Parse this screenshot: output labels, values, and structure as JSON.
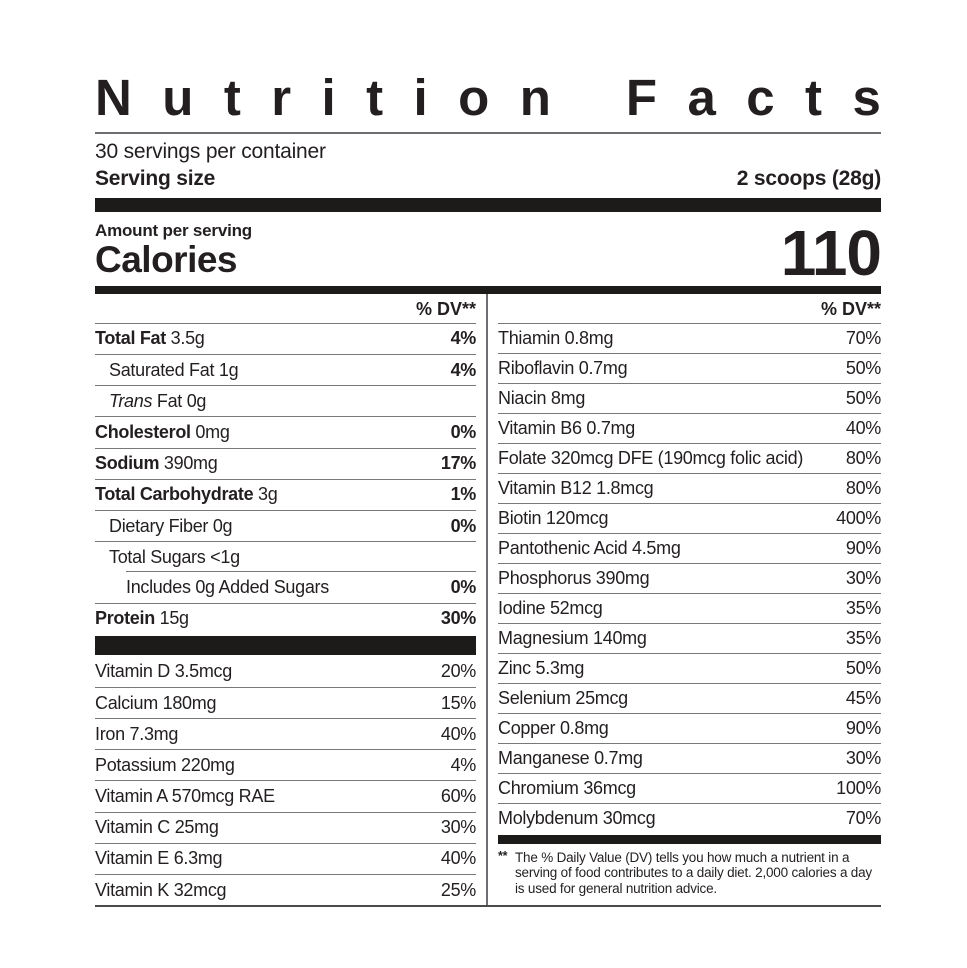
{
  "label": {
    "title": "Nutrition Facts",
    "servings_per_container": "30 servings per container",
    "serving_size_label": "Serving size",
    "serving_size_value": "2 scoops (28g)",
    "amount_per_serving_label": "Amount per serving",
    "calories_label": "Calories",
    "calories_value": "110",
    "dv_header": "% DV**",
    "footnote_marker": "**",
    "footnote_text": "The % Daily Value (DV) tells you how much a nutrient in a serving of food contributes to a daily diet. 2,000 calories a day is used for general nutrition advice."
  },
  "left_column": {
    "main_rows": [
      {
        "lead": "Total Fat",
        "lead_style": "bold",
        "rest": "3.5g",
        "pct": "4%",
        "pct_bold": true,
        "indent": 0,
        "divider": "full"
      },
      {
        "lead": "Saturated Fat",
        "lead_style": "plain",
        "rest": "1g",
        "pct": "4%",
        "pct_bold": true,
        "indent": 1,
        "divider": "full"
      },
      {
        "lead": "Trans",
        "lead_style": "italic",
        "rest": "Fat 0g",
        "pct": "",
        "pct_bold": false,
        "indent": 1,
        "divider": "full"
      },
      {
        "lead": "Cholesterol",
        "lead_style": "bold",
        "rest": "0mg",
        "pct": "0%",
        "pct_bold": true,
        "indent": 0,
        "divider": "full"
      },
      {
        "lead": "Sodium",
        "lead_style": "bold",
        "rest": "390mg",
        "pct": "17%",
        "pct_bold": true,
        "indent": 0,
        "divider": "full"
      },
      {
        "lead": "Total Carbohydrate",
        "lead_style": "bold",
        "rest": "3g",
        "pct": "1%",
        "pct_bold": true,
        "indent": 0,
        "divider": "full"
      },
      {
        "lead": "Dietary Fiber",
        "lead_style": "plain",
        "rest": "0g",
        "pct": "0%",
        "pct_bold": true,
        "indent": 1,
        "divider": "full"
      },
      {
        "lead": "Total Sugars",
        "lead_style": "plain",
        "rest": "<1g",
        "pct": "",
        "pct_bold": false,
        "indent": 1,
        "divider": "indent"
      },
      {
        "lead": "Includes 0g Added Sugars",
        "lead_style": "plain",
        "rest": "",
        "pct": "0%",
        "pct_bold": true,
        "indent": 2,
        "divider": "full"
      },
      {
        "lead": "Protein",
        "lead_style": "bold",
        "rest": "15g",
        "pct": "30%",
        "pct_bold": true,
        "indent": 0,
        "divider": "none"
      }
    ],
    "vitamin_rows": [
      {
        "lead": "Vitamin D",
        "lead_style": "plain",
        "rest": "3.5mcg",
        "pct": "20%",
        "pct_bold": false,
        "indent": 0,
        "divider": "full"
      },
      {
        "lead": "Calcium",
        "lead_style": "plain",
        "rest": "180mg",
        "pct": "15%",
        "pct_bold": false,
        "indent": 0,
        "divider": "full"
      },
      {
        "lead": "Iron",
        "lead_style": "plain",
        "rest": "7.3mg",
        "pct": "40%",
        "pct_bold": false,
        "indent": 0,
        "divider": "full"
      },
      {
        "lead": "Potassium",
        "lead_style": "plain",
        "rest": "220mg",
        "pct": "4%",
        "pct_bold": false,
        "indent": 0,
        "divider": "full"
      },
      {
        "lead": "Vitamin A",
        "lead_style": "plain",
        "rest": "570mcg RAE",
        "pct": "60%",
        "pct_bold": false,
        "indent": 0,
        "divider": "full"
      },
      {
        "lead": "Vitamin C",
        "lead_style": "plain",
        "rest": "25mg",
        "pct": "30%",
        "pct_bold": false,
        "indent": 0,
        "divider": "full"
      },
      {
        "lead": "Vitamin E",
        "lead_style": "plain",
        "rest": "6.3mg",
        "pct": "40%",
        "pct_bold": false,
        "indent": 0,
        "divider": "full"
      },
      {
        "lead": "Vitamin K",
        "lead_style": "plain",
        "rest": "32mcg",
        "pct": "25%",
        "pct_bold": false,
        "indent": 0,
        "divider": "none"
      }
    ]
  },
  "right_column": {
    "rows": [
      {
        "lead": "Thiamin",
        "lead_style": "plain",
        "rest": "0.8mg",
        "pct": "70%",
        "pct_bold": false,
        "indent": 0,
        "divider": "full"
      },
      {
        "lead": "Riboflavin",
        "lead_style": "plain",
        "rest": "0.7mg",
        "pct": "50%",
        "pct_bold": false,
        "indent": 0,
        "divider": "full"
      },
      {
        "lead": "Niacin",
        "lead_style": "plain",
        "rest": "8mg",
        "pct": "50%",
        "pct_bold": false,
        "indent": 0,
        "divider": "full"
      },
      {
        "lead": "Vitamin B6",
        "lead_style": "plain",
        "rest": "0.7mg",
        "pct": "40%",
        "pct_bold": false,
        "indent": 0,
        "divider": "full"
      },
      {
        "lead": "Folate",
        "lead_style": "plain",
        "rest": "320mcg DFE (190mcg folic acid)",
        "pct": "80%",
        "pct_bold": false,
        "indent": 0,
        "divider": "full"
      },
      {
        "lead": "Vitamin B12",
        "lead_style": "plain",
        "rest": "1.8mcg",
        "pct": "80%",
        "pct_bold": false,
        "indent": 0,
        "divider": "full"
      },
      {
        "lead": "Biotin",
        "lead_style": "plain",
        "rest": "120mcg",
        "pct": "400%",
        "pct_bold": false,
        "indent": 0,
        "divider": "full"
      },
      {
        "lead": "Pantothenic Acid",
        "lead_style": "plain",
        "rest": "4.5mg",
        "pct": "90%",
        "pct_bold": false,
        "indent": 0,
        "divider": "full"
      },
      {
        "lead": "Phosphorus",
        "lead_style": "plain",
        "rest": "390mg",
        "pct": "30%",
        "pct_bold": false,
        "indent": 0,
        "divider": "full"
      },
      {
        "lead": "Iodine",
        "lead_style": "plain",
        "rest": "52mcg",
        "pct": "35%",
        "pct_bold": false,
        "indent": 0,
        "divider": "full"
      },
      {
        "lead": "Magnesium",
        "lead_style": "plain",
        "rest": "140mg",
        "pct": "35%",
        "pct_bold": false,
        "indent": 0,
        "divider": "full"
      },
      {
        "lead": "Zinc",
        "lead_style": "plain",
        "rest": "5.3mg",
        "pct": "50%",
        "pct_bold": false,
        "indent": 0,
        "divider": "full"
      },
      {
        "lead": "Selenium",
        "lead_style": "plain",
        "rest": "25mcg",
        "pct": "45%",
        "pct_bold": false,
        "indent": 0,
        "divider": "full"
      },
      {
        "lead": "Copper",
        "lead_style": "plain",
        "rest": "0.8mg",
        "pct": "90%",
        "pct_bold": false,
        "indent": 0,
        "divider": "full"
      },
      {
        "lead": "Manganese",
        "lead_style": "plain",
        "rest": "0.7mg",
        "pct": "30%",
        "pct_bold": false,
        "indent": 0,
        "divider": "full"
      },
      {
        "lead": "Chromium",
        "lead_style": "plain",
        "rest": "36mcg",
        "pct": "100%",
        "pct_bold": false,
        "indent": 0,
        "divider": "full"
      },
      {
        "lead": "Molybdenum",
        "lead_style": "plain",
        "rest": "30mcg",
        "pct": "70%",
        "pct_bold": false,
        "indent": 0,
        "divider": "none"
      }
    ]
  },
  "colors": {
    "text": "#231f20",
    "bar_black": "#1c1b1a",
    "hairline_gray": "#77787b",
    "divider_gray": "#6d6e71",
    "background": "#ffffff"
  }
}
